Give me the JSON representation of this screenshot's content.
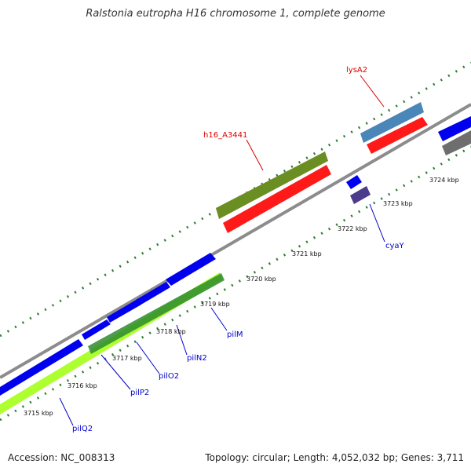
{
  "title": "Ralstonia eutropha H16 chromosome 1, complete genome",
  "footer": {
    "accession": "Accession: NC_008313",
    "summary": "Topology: circular; Length: 4,052,032 bp; Genes: 3,711"
  },
  "ticks": [
    "3715 kbp",
    "3716 kbp",
    "3717 kbp",
    "3718 kbp",
    "3719 kbp",
    "3720 kbp",
    "3721 kbp",
    "3722 kbp",
    "3723 kbp",
    "3724 kbp"
  ],
  "gene_labels": {
    "lysA2": "lysA2",
    "h16_A3441": "h16_A3441",
    "cyaY": "cyaY",
    "pilM": "pilM",
    "pilN2": "pilN2",
    "pilO2": "pilO2",
    "pilP2": "pilP2",
    "pilQ2": "pilQ2"
  },
  "colors": {
    "backbone": "#8c8c8c",
    "tick_green": "#2e7d32",
    "gene_blue": "#0000ee",
    "gene_red": "#ff1a1a",
    "gene_olive": "#6b8e23",
    "gene_steelblue": "#4a86b8",
    "gene_lightgreen": "#adff2f",
    "gene_darkgreen": "#2e8b2e",
    "gene_navy_purple": "#4b3c8c",
    "gene_gray": "#6e6e6e",
    "label_red": "#dd0000",
    "label_blue": "#0000cc"
  }
}
